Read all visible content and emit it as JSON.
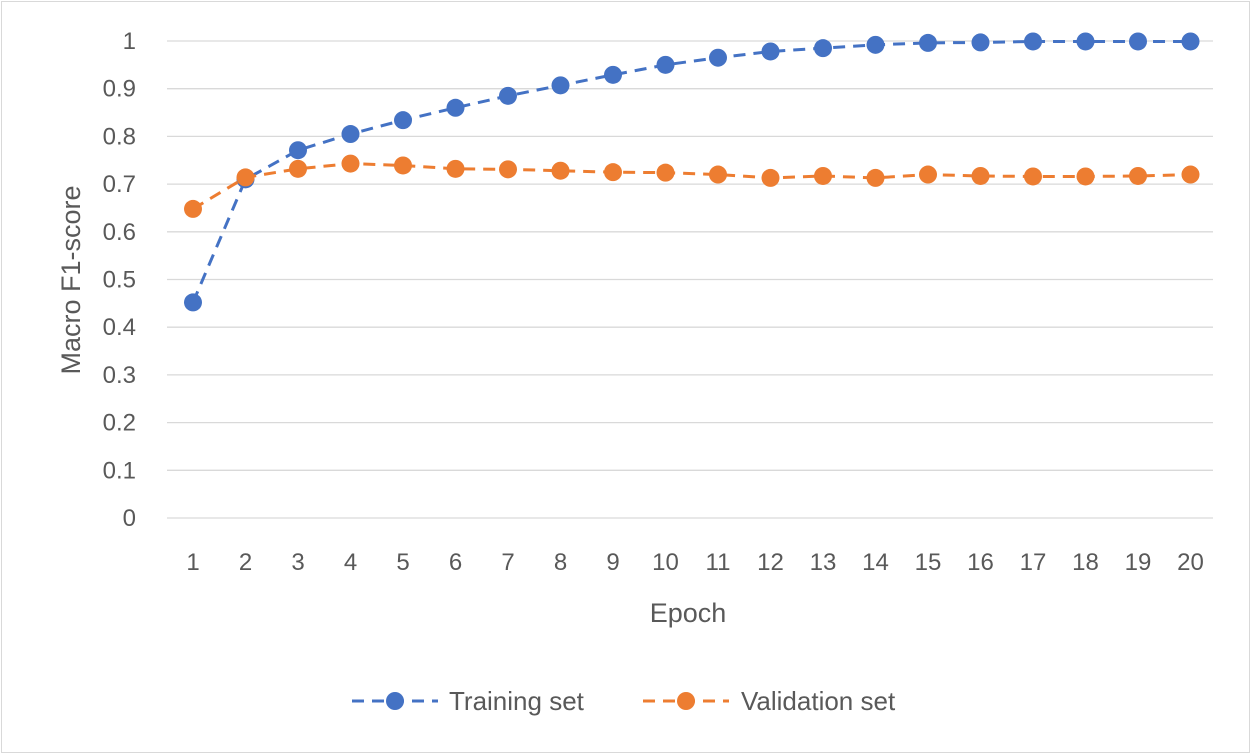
{
  "chart_data": {
    "type": "line",
    "title": "",
    "xlabel": "Epoch",
    "ylabel": "Macro F1-score",
    "x": [
      1,
      2,
      3,
      4,
      5,
      6,
      7,
      8,
      9,
      10,
      11,
      12,
      13,
      14,
      15,
      16,
      17,
      18,
      19,
      20
    ],
    "x_tick_labels": [
      "1",
      "2",
      "3",
      "4",
      "5",
      "6",
      "7",
      "8",
      "9",
      "10",
      "11",
      "12",
      "13",
      "14",
      "15",
      "16",
      "17",
      "18",
      "19",
      "20"
    ],
    "y_tick_labels": [
      "0",
      "0.1",
      "0.2",
      "0.3",
      "0.4",
      "0.5",
      "0.6",
      "0.7",
      "0.8",
      "0.9",
      "1"
    ],
    "ylim": [
      0,
      1
    ],
    "grid": true,
    "legend_position": "bottom",
    "series": [
      {
        "name": "Training set",
        "color": "#4472c4",
        "line_style": "dashed",
        "marker": "circle",
        "values": [
          0.452,
          0.71,
          0.771,
          0.805,
          0.834,
          0.86,
          0.885,
          0.907,
          0.929,
          0.95,
          0.965,
          0.978,
          0.985,
          0.992,
          0.996,
          0.997,
          0.999,
          0.999,
          0.999,
          0.999
        ]
      },
      {
        "name": "Validation set",
        "color": "#ed7d31",
        "line_style": "dashed",
        "marker": "circle",
        "values": [
          0.648,
          0.714,
          0.732,
          0.743,
          0.739,
          0.732,
          0.731,
          0.728,
          0.725,
          0.724,
          0.72,
          0.713,
          0.717,
          0.713,
          0.72,
          0.717,
          0.716,
          0.716,
          0.717,
          0.72
        ]
      }
    ]
  }
}
